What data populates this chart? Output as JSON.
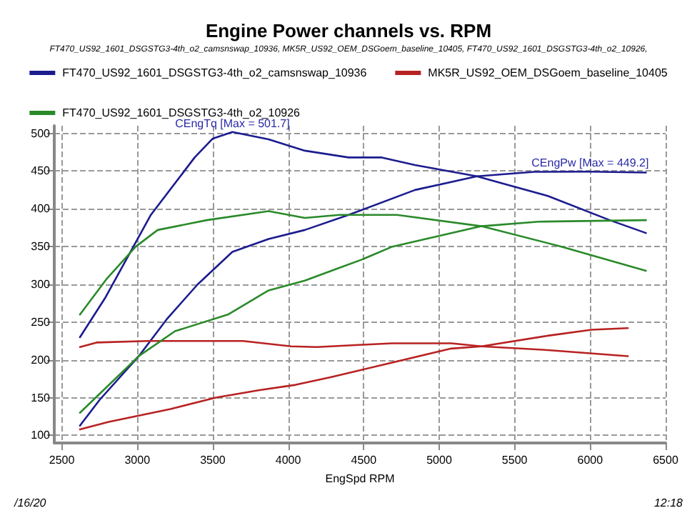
{
  "chart_data": {
    "type": "line",
    "title": "Engine Power channels vs. RPM",
    "subtitle": "FT470_US92_1601_DSGSTG3-4th_o2_camsnswap_10936, MK5R_US92_OEM_DSGoem_baseline_10405, FT470_US92_1601_DSGSTG3-4th_o2_10926,",
    "xlabel": "EngSpd RPM",
    "xlim": [
      2450,
      6500
    ],
    "xticks": [
      2500,
      3000,
      3500,
      4000,
      4500,
      5000,
      5500,
      6000,
      6500
    ],
    "ylim": [
      90,
      510
    ],
    "yticks": [
      100,
      150,
      200,
      250,
      300,
      350,
      400,
      450,
      500
    ],
    "grid": true,
    "legend": "top",
    "marker": "none",
    "line_style": "solid",
    "annotations": [
      {
        "text": "CEngTq [Max = 501.7]",
        "x": 3630,
        "y": 501.7
      },
      {
        "text": "CEngPw [Max = 449.2]",
        "x": 6000,
        "y": 449.2
      },
      "/16/20",
      "12:18"
    ],
    "series": [
      {
        "name": "FT470_US92_1601_DSGSTG3-4th_o2_camsnswap_10936",
        "color": "#1c1c8f",
        "x": [
          2620,
          2790,
          3090,
          3380,
          3500,
          3630,
          3870,
          4110,
          4400,
          4620,
          4840,
          5250,
          5720,
          6130,
          6370
        ],
        "values": [
          230,
          283,
          392,
          468,
          493,
          501.7,
          492,
          477,
          468,
          468,
          458,
          443,
          417,
          385,
          368
        ]
      },
      {
        "color": "#1c1c8f",
        "x": [
          2620,
          2750,
          3010,
          3200,
          3400,
          3630,
          3870,
          4110,
          4400,
          4840,
          5250,
          5630,
          6000,
          6370
        ],
        "values": [
          113,
          147,
          205,
          255,
          300,
          343,
          360,
          372,
          392,
          425,
          443,
          449,
          449.2,
          448
        ]
      },
      {
        "name": "MK5R_US92_OEM_DSGoem_baseline_10405",
        "color": "#b82222",
        "x": [
          2620,
          2730,
          3070,
          3500,
          3700,
          4020,
          4190,
          4490,
          4690,
          5080,
          5280,
          5720,
          6250
        ],
        "values": [
          217,
          223,
          225,
          225,
          225,
          218,
          217,
          220,
          222,
          222,
          218,
          213,
          205
        ]
      },
      {
        "color": "#b82222",
        "x": [
          2620,
          2810,
          3220,
          3520,
          3810,
          4050,
          4280,
          4490,
          5080,
          5280,
          5720,
          6010,
          6250
        ],
        "values": [
          108,
          118,
          135,
          150,
          160,
          167,
          177,
          187,
          215,
          218,
          232,
          240,
          242
        ]
      },
      {
        "name": "FT470_US92_1601_DSGSTG3-4th_o2_10926",
        "color": "#2a8a2a",
        "x": [
          2620,
          2800,
          2990,
          3135,
          3460,
          3870,
          4110,
          4340,
          4720,
          5280,
          5810,
          6370
        ],
        "values": [
          260,
          308,
          350,
          372,
          385,
          397,
          388,
          392,
          392,
          377,
          350,
          318
        ]
      },
      {
        "color": "#2a8a2a",
        "x": [
          2620,
          3010,
          3250,
          3600,
          3870,
          4110,
          4340,
          4490,
          4690,
          5280,
          5660,
          6370
        ],
        "values": [
          130,
          205,
          238,
          260,
          292,
          305,
          322,
          333,
          350,
          377,
          383,
          385
        ]
      }
    ]
  }
}
